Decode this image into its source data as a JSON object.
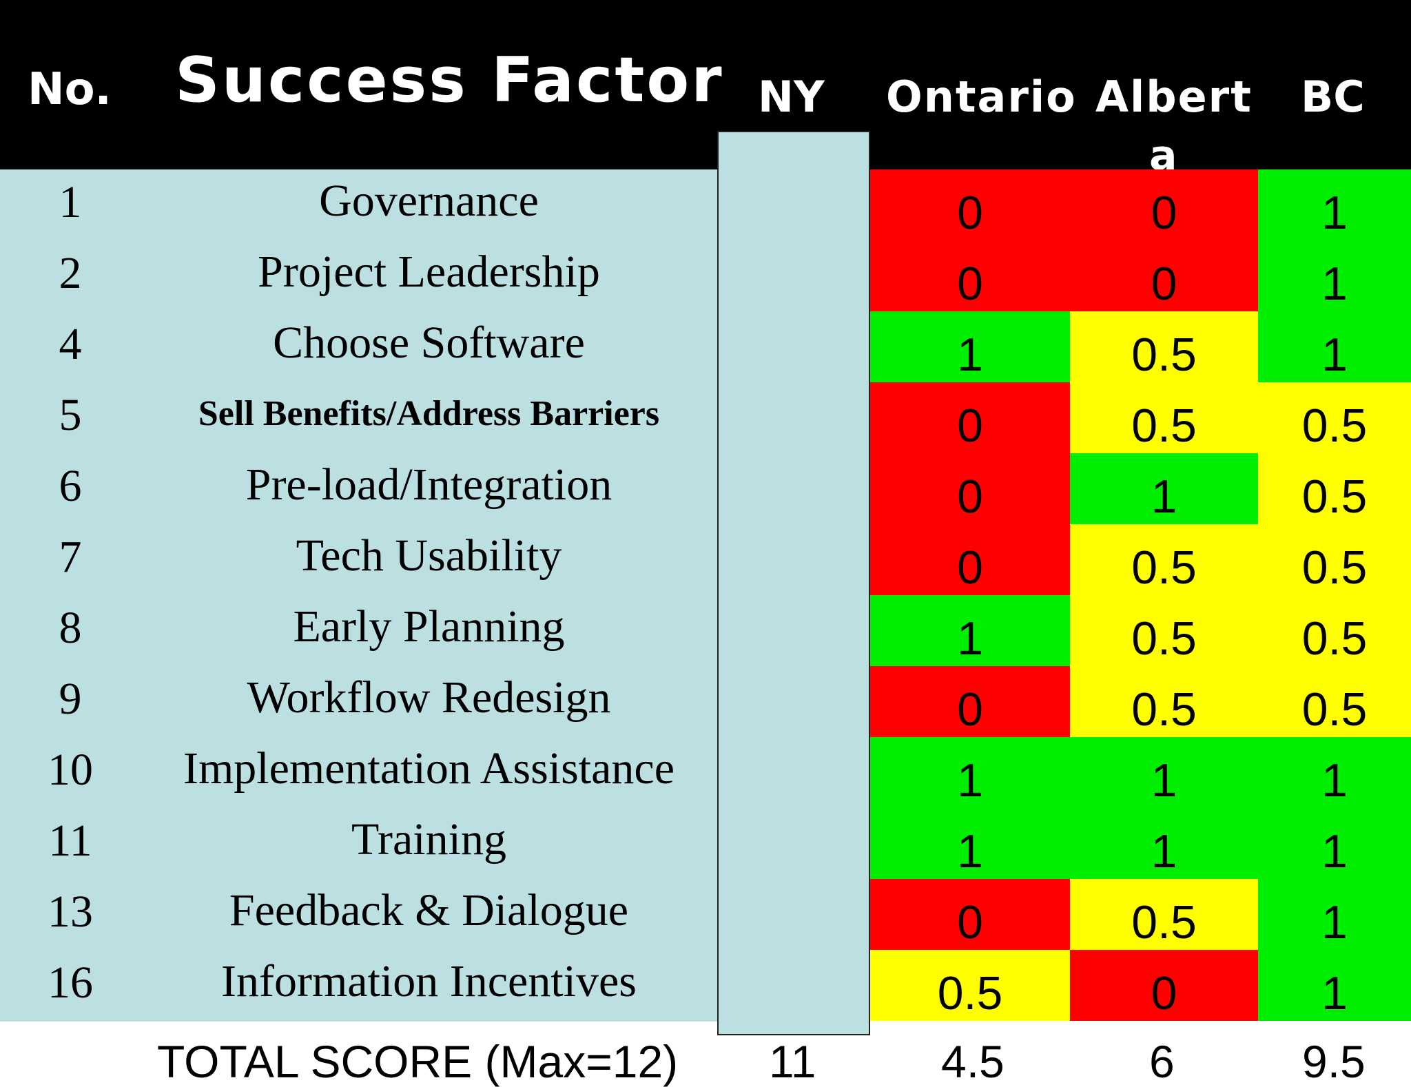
{
  "colors": {
    "red": "#ff0000",
    "yellow": "#ffff00",
    "green": "#00ee00",
    "panel": "#bcdfe1",
    "header": "#000000"
  },
  "header": {
    "no": "No.",
    "success_factor": "Success Factor",
    "ny": "NY",
    "ontario": "Ontario",
    "alberta_line1": "Albert",
    "alberta_line2": "a",
    "bc": "BC"
  },
  "rows": [
    {
      "no": "1",
      "factor": "Governance",
      "ontario": "0",
      "alberta": "0",
      "bc": "1"
    },
    {
      "no": "2",
      "factor": "Project Leadership",
      "ontario": "0",
      "alberta": "0",
      "bc": "1"
    },
    {
      "no": "4",
      "factor": "Choose Software",
      "ontario": "1",
      "alberta": "0.5",
      "bc": "1"
    },
    {
      "no": "5",
      "factor": "Sell Benefits/Address Barriers",
      "ontario": "0",
      "alberta": "0.5",
      "bc": "0.5"
    },
    {
      "no": "6",
      "factor": "Pre-load/Integration",
      "ontario": "0",
      "alberta": "1",
      "bc": "0.5"
    },
    {
      "no": "7",
      "factor": "Tech Usability",
      "ontario": "0",
      "alberta": "0.5",
      "bc": "0.5"
    },
    {
      "no": "8",
      "factor": "Early Planning",
      "ontario": "1",
      "alberta": "0.5",
      "bc": "0.5"
    },
    {
      "no": "9",
      "factor": "Workflow Redesign",
      "ontario": "0",
      "alberta": "0.5",
      "bc": "0.5"
    },
    {
      "no": "10",
      "factor": "Implementation Assistance",
      "ontario": "1",
      "alberta": "1",
      "bc": "1"
    },
    {
      "no": "11",
      "factor": "Training",
      "ontario": "1",
      "alberta": "1",
      "bc": "1"
    },
    {
      "no": "13",
      "factor": "Feedback & Dialogue",
      "ontario": "0",
      "alberta": "0.5",
      "bc": "1"
    },
    {
      "no": "16",
      "factor": "Information Incentives",
      "ontario": "0.5",
      "alberta": "0",
      "bc": "1"
    }
  ],
  "total": {
    "label": "TOTAL SCORE (Max=12)",
    "ny": "11",
    "ontario": "4.5",
    "alberta": "6",
    "bc": "9.5"
  }
}
